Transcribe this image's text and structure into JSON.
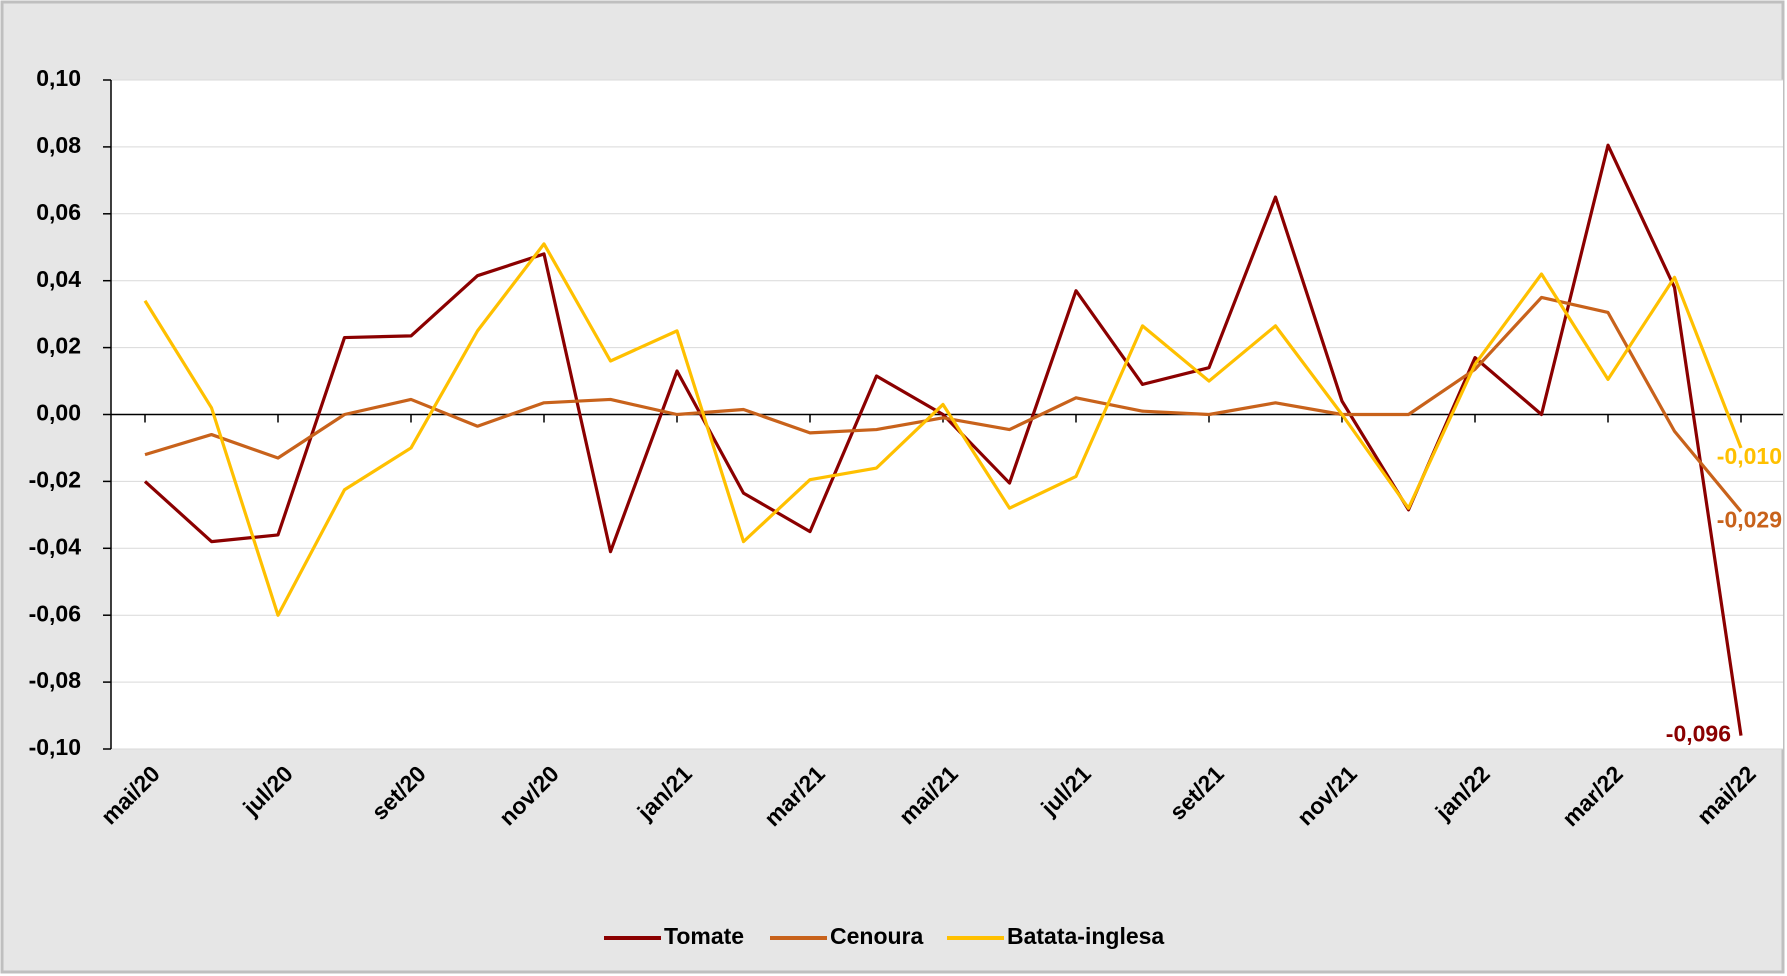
{
  "chart_data": {
    "type": "line",
    "categories": [
      "mai/20",
      null,
      "jul/20",
      null,
      "set/20",
      null,
      "nov/20",
      null,
      "jan/21",
      null,
      "mar/21",
      null,
      "mai/21",
      null,
      "jul/21",
      null,
      "set/21",
      null,
      "nov/21",
      null,
      "jan/22",
      null,
      "mar/22",
      null,
      "mai/22"
    ],
    "series": [
      {
        "name": "Tomate",
        "color": "#8b0000",
        "values": [
          -0.02,
          -0.038,
          -0.036,
          0.023,
          0.0235,
          0.0415,
          0.048,
          -0.041,
          0.013,
          -0.0235,
          -0.035,
          0.0115,
          0.0,
          -0.0205,
          0.037,
          0.009,
          0.014,
          0.065,
          0.004,
          -0.0285,
          0.017,
          0.0,
          0.0805,
          0.038,
          -0.096
        ],
        "value_labels": [
          null,
          null,
          null,
          null,
          null,
          null,
          null,
          null,
          null,
          null,
          null,
          null,
          null,
          null,
          null,
          null,
          null,
          null,
          null,
          null,
          null,
          null,
          null,
          null,
          "-0,096"
        ]
      },
      {
        "name": "Cenoura",
        "color": "#c8621b",
        "values": [
          -0.012,
          -0.006,
          -0.013,
          0.0,
          0.0045,
          -0.0035,
          0.0035,
          0.0045,
          0.0,
          0.0015,
          -0.0055,
          -0.0045,
          -0.001,
          -0.0045,
          0.005,
          0.001,
          0.0,
          0.0035,
          0.0,
          0.0,
          0.0135,
          0.035,
          0.0305,
          -0.005,
          -0.029
        ],
        "value_labels": [
          null,
          null,
          null,
          null,
          null,
          null,
          null,
          null,
          null,
          null,
          null,
          null,
          null,
          null,
          null,
          null,
          null,
          null,
          null,
          null,
          null,
          null,
          null,
          null,
          "-0,029"
        ]
      },
      {
        "name": "Batata-inglesa",
        "color": "#ffc000",
        "values": [
          0.034,
          0.002,
          -0.06,
          -0.0225,
          -0.01,
          0.025,
          0.051,
          0.016,
          0.025,
          -0.038,
          -0.0195,
          -0.016,
          0.003,
          -0.028,
          -0.0185,
          0.0265,
          0.01,
          0.0265,
          0.0,
          -0.028,
          0.015,
          0.042,
          0.0105,
          0.041,
          -0.01
        ],
        "value_labels": [
          null,
          null,
          null,
          null,
          null,
          null,
          null,
          null,
          null,
          null,
          null,
          null,
          null,
          null,
          null,
          null,
          null,
          null,
          null,
          null,
          null,
          null,
          null,
          null,
          "-0,010"
        ]
      }
    ],
    "ylim": [
      -0.1,
      0.1
    ],
    "yticks": [
      {
        "value": -0.1,
        "label": "-0,10"
      },
      {
        "value": -0.08,
        "label": "-0,08"
      },
      {
        "value": -0.06,
        "label": "-0,06"
      },
      {
        "value": -0.04,
        "label": "-0,04"
      },
      {
        "value": -0.02,
        "label": "-0,02"
      },
      {
        "value": 0,
        "label": "0,00"
      },
      {
        "value": 0.02,
        "label": "0,02"
      },
      {
        "value": 0.04,
        "label": "0,04"
      },
      {
        "value": 0.06,
        "label": "0,06"
      },
      {
        "value": 0.08,
        "label": "0,08"
      },
      {
        "value": 0.1,
        "label": "0,10"
      }
    ],
    "grid": true,
    "legend": "bottom"
  }
}
